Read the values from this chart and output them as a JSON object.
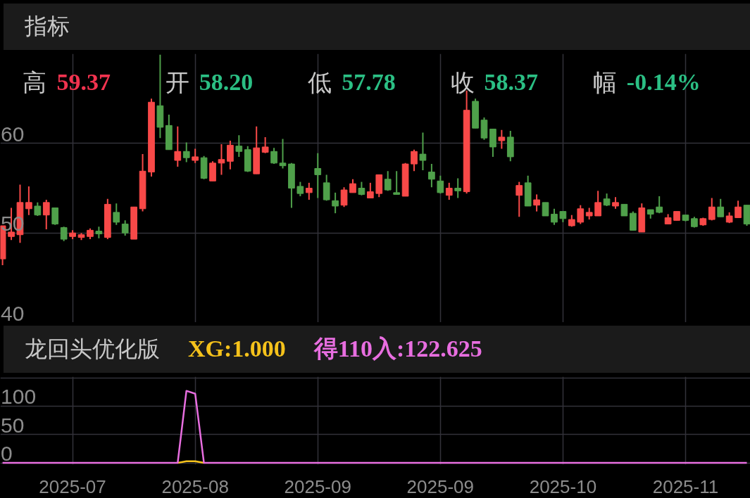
{
  "chart_data": [
    {
      "type": "candlestick",
      "title": "指标",
      "categories": [
        null,
        null,
        null,
        null,
        null,
        null,
        null,
        null,
        "2025-07",
        null,
        null,
        null,
        null,
        null,
        null,
        null,
        null,
        null,
        null,
        null,
        null,
        null,
        "2025-08",
        null,
        null,
        null,
        null,
        null,
        null,
        null,
        null,
        null,
        null,
        null,
        null,
        null,
        "2025-09",
        null,
        null,
        null,
        null,
        null,
        null,
        null,
        null,
        null,
        null,
        null,
        null,
        null,
        "2025-09",
        null,
        null,
        null,
        null,
        null,
        null,
        null,
        null,
        null,
        null,
        null,
        null,
        null,
        "2025-10",
        null,
        null,
        null,
        null,
        null,
        null,
        null,
        null,
        null,
        null,
        null,
        null,
        null,
        "2025-11",
        null,
        null,
        null,
        null,
        null,
        null,
        null
      ],
      "ohlc": [
        [
          47.1,
          50.8,
          46.4,
          50.8
        ],
        [
          49.6,
          52.8,
          49.2,
          50.1
        ],
        [
          49.8,
          55.4,
          48.9,
          53.4
        ],
        [
          52.7,
          55.2,
          52.0,
          53.4
        ],
        [
          53.0,
          53.4,
          51.9,
          52.0
        ],
        [
          52.0,
          53.7,
          50.4,
          53.4
        ],
        [
          52.8,
          52.8,
          50.9,
          51.0
        ],
        [
          50.6,
          50.7,
          49.1,
          49.3
        ],
        [
          49.6,
          50.3,
          49.3,
          50.0
        ],
        [
          49.5,
          50.0,
          49.2,
          49.8
        ],
        [
          49.6,
          50.5,
          49.3,
          50.3
        ],
        [
          50.2,
          50.7,
          49.4,
          49.9
        ],
        [
          49.5,
          53.8,
          49.3,
          53.2
        ],
        [
          52.3,
          53.3,
          50.9,
          51.2
        ],
        [
          51.0,
          51.4,
          49.7,
          50.0
        ],
        [
          49.3,
          52.9,
          49.3,
          52.9
        ],
        [
          52.7,
          58.8,
          52.4,
          56.9
        ],
        [
          56.8,
          65.0,
          56.3,
          64.6
        ],
        [
          64.2,
          69.9,
          60.6,
          61.8
        ],
        [
          62.0,
          63.2,
          59.3,
          59.3
        ],
        [
          58.1,
          61.9,
          57.4,
          59.1
        ],
        [
          59.1,
          60.1,
          57.9,
          58.4
        ],
        [
          58.1,
          59.4,
          57.8,
          58.5
        ],
        [
          58.4,
          58.6,
          56.0,
          56.1
        ],
        [
          55.8,
          58.0,
          55.8,
          57.8
        ],
        [
          57.8,
          59.9,
          56.5,
          58.2
        ],
        [
          58.0,
          60.3,
          57.1,
          59.8
        ],
        [
          59.7,
          60.9,
          58.5,
          59.1
        ],
        [
          59.3,
          59.7,
          56.8,
          56.9
        ],
        [
          56.6,
          61.9,
          56.6,
          59.5
        ],
        [
          59.0,
          60.7,
          58.9,
          59.6
        ],
        [
          59.1,
          59.5,
          57.7,
          57.8
        ],
        [
          57.8,
          60.5,
          57.2,
          57.5
        ],
        [
          57.7,
          57.8,
          52.8,
          55.0
        ],
        [
          55.2,
          55.7,
          54.1,
          54.4
        ],
        [
          54.5,
          55.6,
          53.7,
          55.0
        ],
        [
          57.2,
          58.9,
          53.9,
          56.5
        ],
        [
          55.6,
          56.5,
          53.6,
          53.7
        ],
        [
          53.6,
          54.5,
          52.2,
          53.0
        ],
        [
          53.1,
          55.1,
          52.9,
          54.8
        ],
        [
          54.5,
          56.0,
          54.5,
          55.5
        ],
        [
          55.0,
          55.7,
          54.2,
          54.3
        ],
        [
          53.9,
          55.6,
          53.9,
          54.6
        ],
        [
          54.4,
          56.5,
          54.0,
          56.5
        ],
        [
          56.0,
          56.9,
          54.7,
          54.8
        ],
        [
          54.5,
          56.9,
          54.3,
          54.3
        ],
        [
          54.1,
          57.8,
          54.1,
          57.7
        ],
        [
          57.7,
          59.3,
          56.9,
          59.1
        ],
        [
          58.8,
          61.2,
          57.0,
          58.1
        ],
        [
          56.8,
          57.7,
          55.1,
          56.0
        ],
        [
          55.8,
          56.4,
          54.4,
          54.5
        ],
        [
          54.2,
          55.6,
          53.7,
          55.0
        ],
        [
          55.0,
          56.1,
          53.9,
          54.7
        ],
        [
          54.6,
          65.9,
          54.4,
          63.7
        ],
        [
          64.7,
          65.0,
          61.7,
          61.7
        ],
        [
          62.6,
          62.9,
          60.4,
          60.6
        ],
        [
          61.6,
          61.6,
          58.5,
          59.6
        ],
        [
          60.3,
          61.5,
          59.4,
          60.7
        ],
        [
          60.7,
          61.4,
          58.0,
          58.5
        ],
        [
          54.2,
          55.7,
          51.8,
          55.3
        ],
        [
          55.6,
          56.4,
          53.0,
          53.0
        ],
        [
          53.1,
          54.3,
          52.4,
          53.7
        ],
        [
          53.4,
          53.4,
          51.9,
          51.9
        ],
        [
          52.1,
          52.7,
          50.9,
          51.2
        ],
        [
          52.4,
          52.4,
          51.2,
          51.6
        ],
        [
          50.8,
          52.0,
          50.7,
          51.5
        ],
        [
          51.2,
          53.1,
          51.0,
          52.7
        ],
        [
          51.9,
          52.8,
          51.5,
          52.3
        ],
        [
          51.9,
          54.7,
          51.9,
          53.4
        ],
        [
          53.8,
          54.4,
          53.0,
          53.1
        ],
        [
          53.0,
          54.0,
          52.7,
          53.4
        ],
        [
          53.2,
          53.2,
          51.9,
          51.9
        ],
        [
          52.2,
          52.4,
          50.3,
          50.3
        ],
        [
          50.1,
          53.3,
          50.1,
          52.8
        ],
        [
          52.6,
          52.6,
          51.6,
          52.1
        ],
        [
          52.9,
          54.1,
          52.2,
          52.3
        ],
        [
          51.0,
          52.1,
          51.0,
          51.7
        ],
        [
          51.4,
          52.4,
          51.4,
          52.4
        ],
        [
          52.0,
          52.0,
          51.3,
          51.4
        ],
        [
          51.6,
          51.8,
          50.6,
          50.7
        ],
        [
          50.9,
          51.7,
          50.8,
          51.6
        ],
        [
          51.5,
          53.9,
          51.4,
          52.9
        ],
        [
          52.9,
          53.8,
          51.8,
          51.8
        ],
        [
          51.2,
          52.3,
          51.1,
          51.9
        ],
        [
          51.7,
          53.6,
          51.7,
          52.9
        ],
        [
          53.1,
          53.1,
          50.8,
          51.0
        ]
      ],
      "ylim": [
        40,
        70
      ],
      "yticks": [
        40,
        50,
        60
      ],
      "grid": true,
      "tick_labels": "y",
      "annotations": [
        "高 59.37",
        "开 58.20",
        "低 57.78",
        "收 58.37",
        "幅 -0.14%"
      ]
    },
    {
      "type": "line",
      "title": "龙回头优化版",
      "categories": [
        null,
        null,
        null,
        null,
        null,
        null,
        null,
        null,
        "2025-07",
        null,
        null,
        null,
        null,
        null,
        null,
        null,
        null,
        null,
        null,
        null,
        null,
        null,
        "2025-08",
        null,
        null,
        null,
        null,
        null,
        null,
        null,
        null,
        null,
        null,
        null,
        null,
        null,
        "2025-09",
        null,
        null,
        null,
        null,
        null,
        null,
        null,
        null,
        null,
        null,
        null,
        null,
        null,
        "2025-09",
        null,
        null,
        null,
        null,
        null,
        null,
        null,
        null,
        null,
        null,
        null,
        null,
        null,
        "2025-10",
        null,
        null,
        null,
        null,
        null,
        null,
        null,
        null,
        null,
        null,
        null,
        null,
        null,
        "2025-11",
        null,
        null,
        null,
        null,
        null,
        null,
        null
      ],
      "series": [
        {
          "name": "XG:1.000",
          "color": "#f5c21b",
          "values": [
            null,
            null,
            null,
            null,
            null,
            null,
            null,
            null,
            null,
            null,
            null,
            null,
            null,
            null,
            null,
            null,
            null,
            null,
            null,
            null,
            0,
            3,
            3,
            0,
            null,
            null,
            null,
            null,
            null,
            null,
            null,
            null,
            null,
            null,
            null,
            null,
            null,
            null,
            null,
            null,
            null,
            null,
            null,
            null,
            null,
            null,
            null,
            null,
            null,
            null,
            null,
            null,
            null,
            null,
            null,
            null,
            null,
            null,
            null,
            null,
            null,
            null,
            null,
            null,
            null,
            null,
            null,
            null,
            null,
            null,
            null,
            null,
            null,
            null,
            null,
            null,
            null,
            null,
            null,
            null,
            null,
            null,
            null,
            null,
            null,
            null
          ]
        },
        {
          "name": "得110入:122.625",
          "color": "#e86ee0",
          "values": [
            0,
            0,
            0,
            0,
            0,
            0,
            0,
            0,
            0,
            0,
            0,
            0,
            0,
            0,
            0,
            0,
            0,
            0,
            0,
            0,
            0,
            127,
            122,
            0,
            0,
            0,
            0,
            0,
            0,
            0,
            0,
            0,
            0,
            0,
            0,
            0,
            0,
            0,
            0,
            0,
            0,
            0,
            0,
            0,
            0,
            0,
            0,
            0,
            0,
            0,
            0,
            0,
            0,
            0,
            0,
            0,
            0,
            0,
            0,
            0,
            0,
            0,
            0,
            0,
            0,
            0,
            0,
            0,
            0,
            0,
            0,
            0,
            0,
            0,
            0,
            0,
            0,
            0,
            0,
            0,
            0,
            0,
            0,
            0,
            0,
            0
          ]
        }
      ],
      "ylim": [
        -3,
        152
      ],
      "yticks": [
        0,
        50,
        100,
        {
          "value": 150,
          "label": null
        }
      ],
      "grid": true,
      "legend": "top"
    }
  ]
}
